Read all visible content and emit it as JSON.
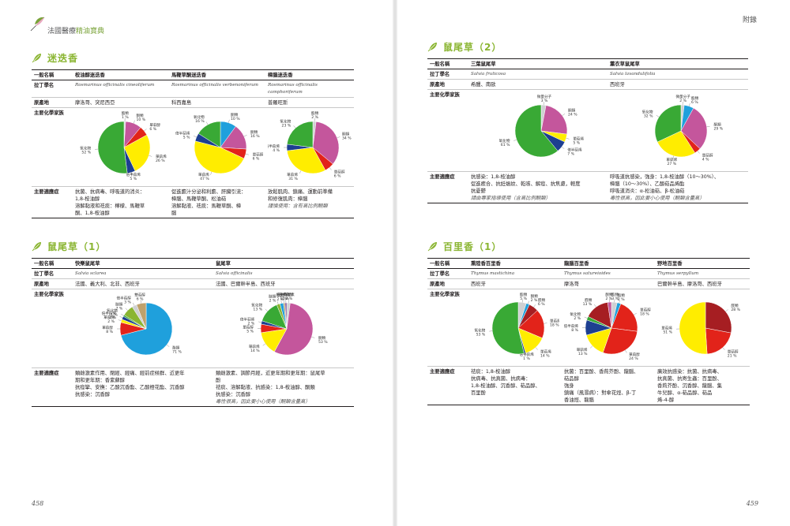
{
  "header": {
    "book_title_a": "法國醫療",
    "book_title_b": "精油寶典",
    "appendix": "附錄"
  },
  "folios": {
    "left": "458",
    "right": "459"
  },
  "row_labels": {
    "common": "一般名稱",
    "latin": "拉丁學名",
    "origin": "原產地",
    "chem": "主要化學家族",
    "indication": "主要適應症"
  },
  "sections": [
    {
      "id": "rosemary",
      "title": "迷迭香",
      "columns": [
        {
          "common": "桉油醇迷迭香",
          "latin": "Rosmarinus officinalis cineoliferum",
          "origin": "摩洛哥、突尼西亞",
          "indication": [
            "抗菌、抗病毒、呼吸道的消炎：",
            "1,8-桉油醇",
            "溶解黏液和祛痰：檸檬、馬鞭草",
            "酮、1,8-桉油醇"
          ],
          "note": "",
          "pie": [
            {
              "label": "酯類",
              "value": 1,
              "color": "#cfd0d2"
            },
            {
              "label": "酮類",
              "value": 10,
              "color": "#c4569c"
            },
            {
              "label": "單萜醇",
              "value": 6,
              "color": "#e2231a"
            },
            {
              "label": "單萜烯",
              "value": 26,
              "color": "#ffed00"
            },
            {
              "label": "倍半萜烯",
              "value": 5,
              "color": "#1d3f91"
            },
            {
              "label": "氧化物",
              "value": 52,
              "color": "#39a935"
            }
          ]
        },
        {
          "common": "馬鞭草酮迷迭香",
          "latin": "Rosmarinus officinalis verbenoniferum",
          "origin": "科西嘉島",
          "indication": [
            "促進膽汁分泌和利膽、肝臟引流：",
            "樟腦、馬鞭草酮、松油萜",
            "溶解黏液、祛痰：馬鞭草酮、樟",
            "腦"
          ],
          "note": "",
          "pie": [
            {
              "label": "酮類",
              "value": 10,
              "color": "#1fa0dc"
            },
            {
              "label": "酮類",
              "value": 16,
              "color": "#c4569c"
            },
            {
              "label": "單萜醇",
              "value": 6,
              "color": "#e2231a"
            },
            {
              "label": "單萜烯",
              "value": 47,
              "color": "#ffed00"
            },
            {
              "label": "倍半萜烯",
              "value": 5,
              "color": "#1d3f91"
            },
            {
              "label": "氧化物",
              "value": 16,
              "color": "#39a935"
            }
          ]
        },
        {
          "common": "樟腦迷迭香",
          "latin": "Rosmarinus officinalis camphoriferum",
          "origin": "普羅旺斯",
          "indication": [
            "放鬆肌肉、鎮痛、運動前準備",
            "和修復肌肉：樟腦"
          ],
          "note": "謹慎使用：含有高比例酮類",
          "pie": [
            {
              "label": "酯類",
              "value": 2,
              "color": "#cfd0d2"
            },
            {
              "label": "酮類",
              "value": 34,
              "color": "#c4569c"
            },
            {
              "label": "單萜醇",
              "value": 6,
              "color": "#e2231a"
            },
            {
              "label": "單萜烯",
              "value": 31,
              "color": "#ffed00"
            },
            {
              "label": "倍半萜烯",
              "value": 4,
              "color": "#1d3f91"
            },
            {
              "label": "氧化物",
              "value": 23,
              "color": "#39a935"
            }
          ]
        }
      ]
    },
    {
      "id": "sage1",
      "title": "鼠尾草（1）",
      "columns": [
        {
          "common": "快樂鼠尾草",
          "latin": "Salvia sclarea",
          "origin": "法國、義大利、北非、西班牙",
          "indication": [
            "類雌激素作用、閉經、經痛、經前症候群、近更年",
            "期和更年期：香紫蘇醇",
            "抗痙攣、安撫：乙酸沉香酯、乙酸橙花酯、沉香醇",
            "抗感染：沉香醇"
          ],
          "note": "",
          "pie": [
            {
              "label": "酯類",
              "value": 71,
              "color": "#1fa0dc"
            },
            {
              "label": "單萜醇",
              "value": 8,
              "color": "#e2231a"
            },
            {
              "label": "單萜烯",
              "value": 2,
              "color": "#ffed00"
            },
            {
              "label": "倍半萜烯",
              "value": 2,
              "color": "#1d3f91"
            },
            {
              "label": "氧化物",
              "value": 1,
              "color": "#39a935"
            },
            {
              "label": "醚類",
              "value": 7,
              "color": "#8ab531"
            },
            {
              "label": "倍半萜醇",
              "value": 3,
              "color": "#cfd0d2"
            },
            {
              "label": "雙萜醇",
              "value": 6,
              "color": "#bfa16c"
            }
          ]
        },
        {
          "common": "鼠尾草",
          "latin": "Salvia officinalis",
          "origin": "法國、巴爾幹半島、西班牙",
          "indication": [
            "類雌激素、調節月經，近更年期和更年期：鼠尾草",
            "酚",
            "祛痰、溶解黏液、抗感染：1,8-桉油醇、酮類",
            "抗感染：沉香醇"
          ],
          "note": "毒性很高，因此要小心使用（酮類含量高）",
          "pie": [
            {
              "label": "香豆素",
              "value": 2,
              "color": "#cfd0d2"
            },
            {
              "label": "酮類",
              "value": 53,
              "color": "#c4569c"
            },
            {
              "label": "單萜烯",
              "value": 14,
              "color": "#ffed00"
            },
            {
              "label": "單萜醇",
              "value": 5,
              "color": "#e2231a"
            },
            {
              "label": "倍半萜烯",
              "value": 2,
              "color": "#1d3f91"
            },
            {
              "label": "氧化物",
              "value": 13,
              "color": "#39a935"
            },
            {
              "label": "醚類",
              "value": 2,
              "color": "#8ab531"
            },
            {
              "label": "酯類",
              "value": 2,
              "color": "#1fa0dc"
            },
            {
              "label": "倍半萜醇",
              "value": 1,
              "color": "#bfa16c"
            },
            {
              "label": "倍半萜醇",
              "value": 1,
              "color": "#7a4f9c"
            }
          ]
        }
      ]
    },
    {
      "id": "sage2",
      "title": "鼠尾草（2）",
      "columns": [
        {
          "common": "三葉鼠尾草",
          "latin": "Salvia fruticosa",
          "origin": "希臘、南歐",
          "indication": [
            "抗感染：1,8-桉油醇",
            "促進癒合、抗妊娠紋、乾咳、解痙、抗焦慮，輕度",
            "抗憂鬱"
          ],
          "note": "請由專家指導使用（含高比例酮類）",
          "pie": [
            {
              "label": "微量分子",
              "value": 3,
              "color": "#cfd0d2"
            },
            {
              "label": "酮類",
              "value": 24,
              "color": "#c4569c"
            },
            {
              "label": "單萜烯",
              "value": 5,
              "color": "#ffed00"
            },
            {
              "label": "倍半萜烯",
              "value": 7,
              "color": "#1d3f91"
            },
            {
              "label": "氧化物",
              "value": 61,
              "color": "#39a935"
            }
          ]
        },
        {
          "common": "薰衣草鼠尾草",
          "latin": "Salvia lavandulifolia",
          "origin": "西班牙",
          "indication": [
            "呼吸道抗感染，強身：1,8-桉油醇（10～30%）、",
            "樟腦（10～30%）、乙酸萜品烯酯",
            "呼吸道消炎：α-松油萜、β-松油萜"
          ],
          "note": "毒性很高，因此要小心使用（酮類含量高）",
          "pie": [
            {
              "label": "微量分子",
              "value": 2,
              "color": "#cfd0d2"
            },
            {
              "label": "酯類",
              "value": 6,
              "color": "#1fa0dc"
            },
            {
              "label": "酮類",
              "value": 29,
              "color": "#c4569c"
            },
            {
              "label": "單萜醇",
              "value": 4,
              "color": "#e2231a"
            },
            {
              "label": "單萜烯",
              "value": 27,
              "color": "#ffed00"
            },
            {
              "label": "氧化物",
              "value": 32,
              "color": "#39a935"
            }
          ]
        }
      ]
    },
    {
      "id": "thyme1",
      "title": "百里香（1）",
      "columns": [
        {
          "common": "熏陸香百里香",
          "latin": "Thymus mastichina",
          "origin": "西班牙",
          "indication": [
            "祛痰：1,8-桉油醇",
            "抗病毒、抗真菌、抗病毒：",
            "1,8-桉油醇、沉香醇、萜品醇、",
            "百里酚"
          ],
          "note": "",
          "pie": [
            {
              "label": "酯類",
              "value": 5,
              "color": "#cfd0d2"
            },
            {
              "label": "酮類",
              "value": 2,
              "color": "#1fa0dc"
            },
            {
              "label": "醛類",
              "value": 6,
              "color": "#a61e22"
            },
            {
              "label": "單萜醇",
              "value": 18,
              "color": "#e2231a"
            },
            {
              "label": "單萜烯",
              "value": 14,
              "color": "#ffed00"
            },
            {
              "label": "倍半萜烯",
              "value": 1,
              "color": "#1d3f91"
            },
            {
              "label": "氧化物",
              "value": 53,
              "color": "#39a935"
            }
          ]
        },
        {
          "common": "龍腦百里香",
          "latin": "Thymus satureioides",
          "origin": "摩洛哥",
          "indication": [
            "抗菌：百里酚、香荊芥酚、龍腦、",
            "萜品醇",
            "強身",
            "鎮痛（風濕病）：對傘花烴、β-丁",
            "香油烴、龍腦"
          ],
          "note": "",
          "pie": [
            {
              "label": "酯類",
              "value": 3,
              "color": "#cfd0d2"
            },
            {
              "label": "酯類",
              "value": 2,
              "color": "#1fa0dc"
            },
            {
              "label": "單萜醇",
              "value": 18,
              "color": "#e2231a"
            },
            {
              "label": "單萜醇",
              "value": 24,
              "color": "#e2231a"
            },
            {
              "label": "單萜烯",
              "value": 13,
              "color": "#ffed00"
            },
            {
              "label": "倍半萜烯",
              "value": 8,
              "color": "#1d3f91"
            },
            {
              "label": "氧化物",
              "value": 2,
              "color": "#39a935"
            },
            {
              "label": "醛類",
              "value": 13,
              "color": "#a61e22"
            },
            {
              "label": "酮類",
              "value": 2,
              "color": "#c4569c"
            }
          ]
        },
        {
          "common": "野地百里香",
          "latin": "Thymus serpyllum",
          "origin": "巴爾幹半島、摩洛哥、西班牙",
          "indication": [
            "廣效抗感染：抗菌、抗病毒、",
            "抗真菌、抗寄生蟲：百里酚、",
            "香荊芥酚、沉香醇、龍腦、集",
            "牛兒醇、α-萜品醇、萜品",
            "烯-4-醇"
          ],
          "note": "",
          "pie": [
            {
              "label": "醛類",
              "value": 28,
              "color": "#a61e22"
            },
            {
              "label": "單萜醇",
              "value": 21,
              "color": "#e2231a"
            },
            {
              "label": "單萜烯",
              "value": 51,
              "color": "#ffed00"
            }
          ]
        }
      ]
    }
  ]
}
